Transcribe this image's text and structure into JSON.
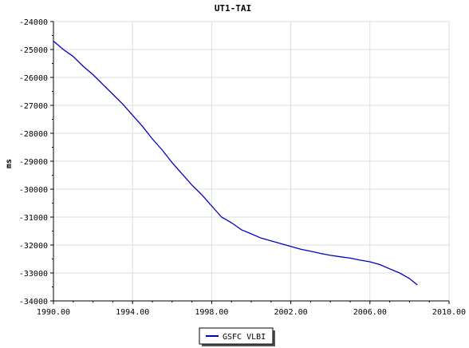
{
  "chart_data": {
    "type": "line",
    "title": "UT1-TAI",
    "xlabel": "",
    "ylabel": "ms",
    "xlim": [
      1990.0,
      2010.0
    ],
    "ylim": [
      -34000,
      -24000
    ],
    "x_ticks": [
      1990,
      1994,
      1998,
      2002,
      2006,
      2010
    ],
    "x_tick_labels": [
      "1990.00",
      "1994.00",
      "1998.00",
      "2002.00",
      "2006.00",
      "2010.00"
    ],
    "y_ticks": [
      -24000,
      -25000,
      -26000,
      -27000,
      -28000,
      -29000,
      -30000,
      -31000,
      -32000,
      -33000,
      -34000
    ],
    "y_tick_labels": [
      "-24000",
      "-25000",
      "-26000",
      "-27000",
      "-28000",
      "-29000",
      "-30000",
      "-31000",
      "-32000",
      "-33000",
      "-34000"
    ],
    "grid": true,
    "legend": "bottom-center",
    "colors": {
      "series": "#0000cc",
      "grid": "#dddddd",
      "axis": "#000000"
    },
    "series": [
      {
        "name": "GSFC VLBI",
        "x": [
          1990.0,
          1990.5,
          1991.0,
          1991.5,
          1992.0,
          1992.5,
          1993.0,
          1993.5,
          1994.0,
          1994.5,
          1995.0,
          1995.5,
          1996.0,
          1996.5,
          1997.0,
          1997.5,
          1998.0,
          1998.5,
          1999.0,
          1999.5,
          2000.0,
          2000.5,
          2001.0,
          2001.5,
          2002.0,
          2002.5,
          2003.0,
          2003.5,
          2004.0,
          2004.5,
          2005.0,
          2005.5,
          2006.0,
          2006.5,
          2007.0,
          2007.5,
          2008.0,
          2008.4
        ],
        "y": [
          -24700,
          -25000,
          -25250,
          -25600,
          -25900,
          -26250,
          -26600,
          -26950,
          -27350,
          -27750,
          -28200,
          -28600,
          -29050,
          -29450,
          -29850,
          -30200,
          -30600,
          -31000,
          -31200,
          -31450,
          -31600,
          -31750,
          -31850,
          -31950,
          -32050,
          -32150,
          -32220,
          -32300,
          -32370,
          -32420,
          -32470,
          -32540,
          -32600,
          -32700,
          -32850,
          -33000,
          -33200,
          -33430
        ]
      }
    ]
  }
}
